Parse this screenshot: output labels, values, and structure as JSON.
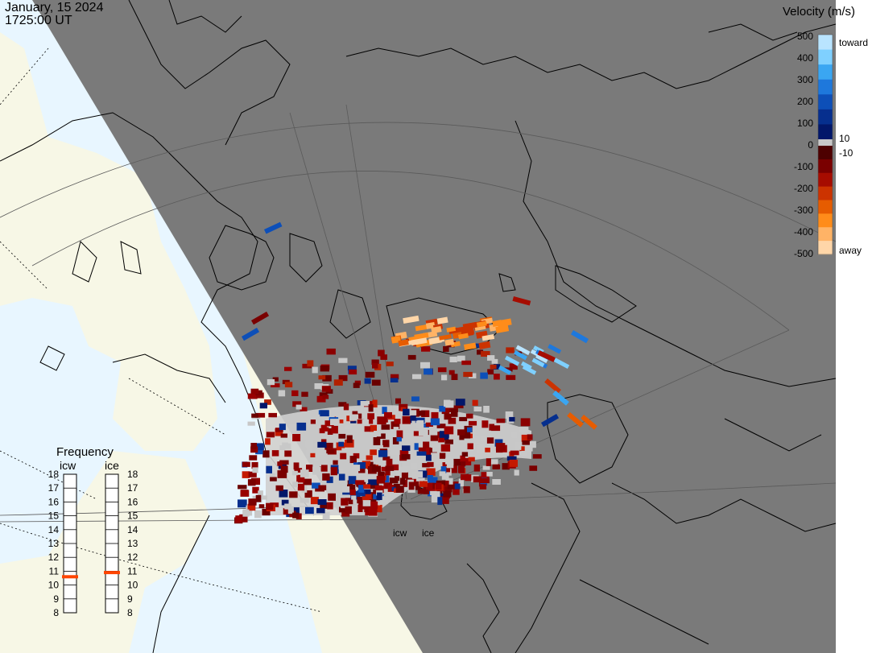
{
  "header": {
    "date": "January, 15 2024",
    "time": "1725:00 UT"
  },
  "velocity_scale": {
    "title": "Velocity (m/s)",
    "ticks": [
      "500",
      "400",
      "300",
      "200",
      "100",
      "0",
      "-100",
      "-200",
      "-300",
      "-400",
      "-500"
    ],
    "side_labels": {
      "toward": "toward",
      "away": "away",
      "pos_threshold": "10",
      "neg_threshold": "-10"
    },
    "toward_colors": [
      "#b9e4ff",
      "#7fd0ff",
      "#3aa6f2",
      "#1e78dc",
      "#0d4fb8",
      "#062f8e",
      "#02176a"
    ],
    "away_colors": [
      "#4d0000",
      "#7a0000",
      "#a60c00",
      "#cc3300",
      "#e65c00",
      "#ff8c1a",
      "#ffb366",
      "#ffd6a8"
    ],
    "ground_color": "#c8c8c8"
  },
  "radar": {
    "beam_labels": [
      "icw",
      "ice"
    ],
    "night_color": "#7a7a7a",
    "day_color": "#f7f7e6",
    "ocean_day_color": "#e8f6ff"
  },
  "frequency_panel": {
    "title": "Frequency",
    "columns": [
      {
        "name": "icw",
        "value_mhz": 10.6
      },
      {
        "name": "ice",
        "value_mhz": 10.9
      }
    ],
    "ticks": [
      "18",
      "17",
      "16",
      "15",
      "14",
      "13",
      "12",
      "11",
      "10",
      "9",
      "8"
    ],
    "marker_color": "#ff4500"
  }
}
